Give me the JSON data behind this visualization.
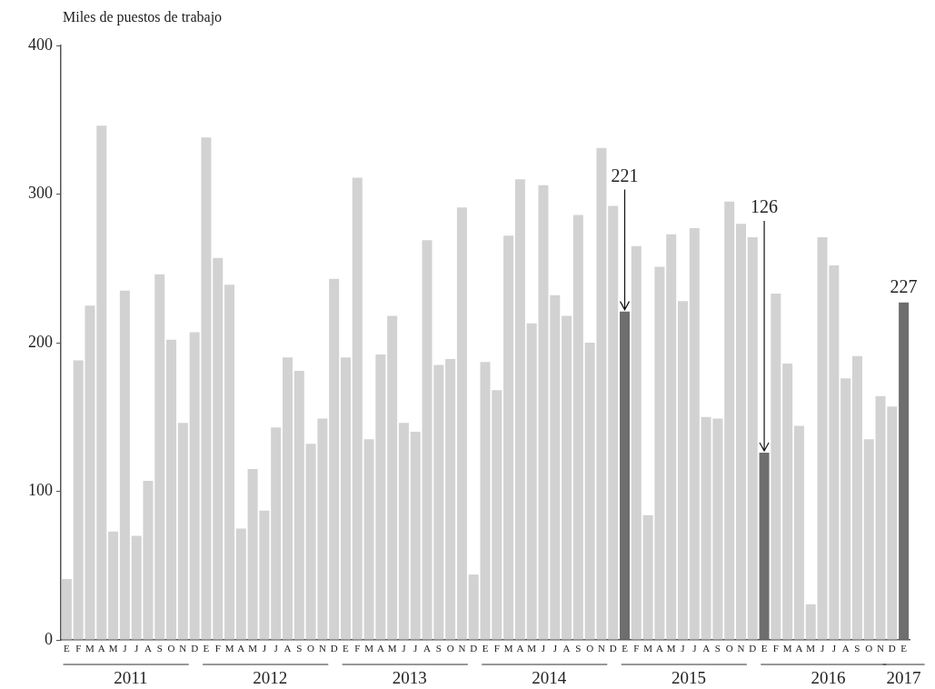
{
  "chart_data": {
    "type": "bar",
    "ylabel": "Miles de puestos de trabajo",
    "categories": [
      "E",
      "F",
      "M",
      "A",
      "M",
      "J",
      "J",
      "A",
      "S",
      "O",
      "N",
      "D",
      "E",
      "F",
      "M",
      "A",
      "M",
      "J",
      "J",
      "A",
      "S",
      "O",
      "N",
      "D",
      "E",
      "F",
      "M",
      "A",
      "M",
      "J",
      "J",
      "A",
      "S",
      "O",
      "N",
      "D",
      "E",
      "F",
      "M",
      "A",
      "M",
      "J",
      "J",
      "A",
      "S",
      "O",
      "N",
      "D",
      "E",
      "F",
      "M",
      "A",
      "M",
      "J",
      "J",
      "A",
      "S",
      "O",
      "N",
      "D",
      "E",
      "F",
      "M",
      "A",
      "M",
      "J",
      "J",
      "A",
      "S",
      "O",
      "N",
      "D",
      "E"
    ],
    "values": [
      41,
      188,
      225,
      346,
      73,
      235,
      70,
      107,
      246,
      202,
      146,
      207,
      338,
      257,
      239,
      75,
      115,
      87,
      143,
      190,
      181,
      132,
      149,
      243,
      190,
      311,
      135,
      192,
      218,
      146,
      140,
      269,
      185,
      189,
      291,
      44,
      187,
      168,
      272,
      310,
      213,
      306,
      232,
      218,
      286,
      200,
      331,
      292,
      221,
      265,
      84,
      251,
      273,
      228,
      277,
      150,
      149,
      295,
      280,
      271,
      126,
      233,
      186,
      144,
      24,
      271,
      252,
      176,
      191,
      135,
      164,
      157,
      227
    ],
    "colors": [
      "#d2d2d2",
      "#d2d2d2",
      "#d2d2d2",
      "#d2d2d2",
      "#d2d2d2",
      "#d2d2d2",
      "#d2d2d2",
      "#d2d2d2",
      "#d2d2d2",
      "#d2d2d2",
      "#d2d2d2",
      "#d2d2d2",
      "#d2d2d2",
      "#d2d2d2",
      "#d2d2d2",
      "#d2d2d2",
      "#d2d2d2",
      "#d2d2d2",
      "#d2d2d2",
      "#d2d2d2",
      "#d2d2d2",
      "#d2d2d2",
      "#d2d2d2",
      "#d2d2d2",
      "#d2d2d2",
      "#d2d2d2",
      "#d2d2d2",
      "#d2d2d2",
      "#d2d2d2",
      "#d2d2d2",
      "#d2d2d2",
      "#d2d2d2",
      "#d2d2d2",
      "#d2d2d2",
      "#d2d2d2",
      "#d2d2d2",
      "#d2d2d2",
      "#d2d2d2",
      "#d2d2d2",
      "#d2d2d2",
      "#d2d2d2",
      "#d2d2d2",
      "#d2d2d2",
      "#d2d2d2",
      "#d2d2d2",
      "#d2d2d2",
      "#d2d2d2",
      "#d2d2d2",
      "#6e6e6e",
      "#d2d2d2",
      "#d2d2d2",
      "#d2d2d2",
      "#d2d2d2",
      "#d2d2d2",
      "#d2d2d2",
      "#d2d2d2",
      "#d2d2d2",
      "#d2d2d2",
      "#d2d2d2",
      "#d2d2d2",
      "#6e6e6e",
      "#d2d2d2",
      "#d2d2d2",
      "#d2d2d2",
      "#d2d2d2",
      "#d2d2d2",
      "#d2d2d2",
      "#d2d2d2",
      "#d2d2d2",
      "#d2d2d2",
      "#d2d2d2",
      "#d2d2d2",
      "#6e6e6e"
    ],
    "value_labels": [
      null,
      null,
      null,
      null,
      null,
      null,
      null,
      null,
      null,
      null,
      null,
      null,
      null,
      null,
      null,
      null,
      null,
      null,
      null,
      null,
      null,
      null,
      null,
      null,
      null,
      null,
      null,
      null,
      null,
      null,
      null,
      null,
      null,
      null,
      null,
      null,
      null,
      null,
      null,
      null,
      null,
      null,
      null,
      null,
      null,
      null,
      null,
      null,
      "221",
      null,
      null,
      null,
      null,
      null,
      null,
      null,
      null,
      null,
      null,
      null,
      "126",
      null,
      null,
      null,
      null,
      null,
      null,
      null,
      null,
      null,
      null,
      null,
      "227"
    ],
    "annotations": [
      "2011",
      "2012",
      "2013",
      "2014",
      "2015",
      "2016",
      "2017"
    ],
    "ylim": [
      0,
      400
    ],
    "yticks": [
      0,
      100,
      200,
      300,
      400
    ]
  }
}
